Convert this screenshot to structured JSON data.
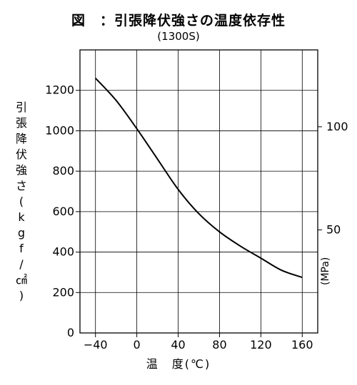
{
  "title": "図　：引張降伏強さの温度依存性",
  "subtitle": "(1300S)",
  "chart_data": {
    "type": "line",
    "xlabel": "温　度(℃)",
    "ylabel": "引張降伏強さ(kgf/㎠)",
    "ylabel_right": "(MPa)",
    "xlim": [
      -55,
      175
    ],
    "ylim": [
      0,
      1400
    ],
    "x_ticks": [
      -40,
      0,
      40,
      80,
      120,
      160
    ],
    "x_tick_labels": [
      "−40",
      "0",
      "40",
      "80",
      "120",
      "160"
    ],
    "y_ticks": [
      200,
      400,
      600,
      800,
      1000,
      1200
    ],
    "y_tick_labels": [
      "200",
      "400",
      "600",
      "800",
      "1000",
      "1200"
    ],
    "y_zero_label": "0",
    "right_ticks_mpa": [
      50,
      100
    ],
    "right_tick_labels": [
      "50",
      "100"
    ],
    "grid": true,
    "series": [
      {
        "x": [
          -40,
          -20,
          0,
          20,
          40,
          60,
          80,
          100,
          120,
          140,
          160
        ],
        "values": [
          1260,
          1150,
          1010,
          860,
          710,
          590,
          500,
          430,
          370,
          310,
          275
        ]
      }
    ]
  }
}
